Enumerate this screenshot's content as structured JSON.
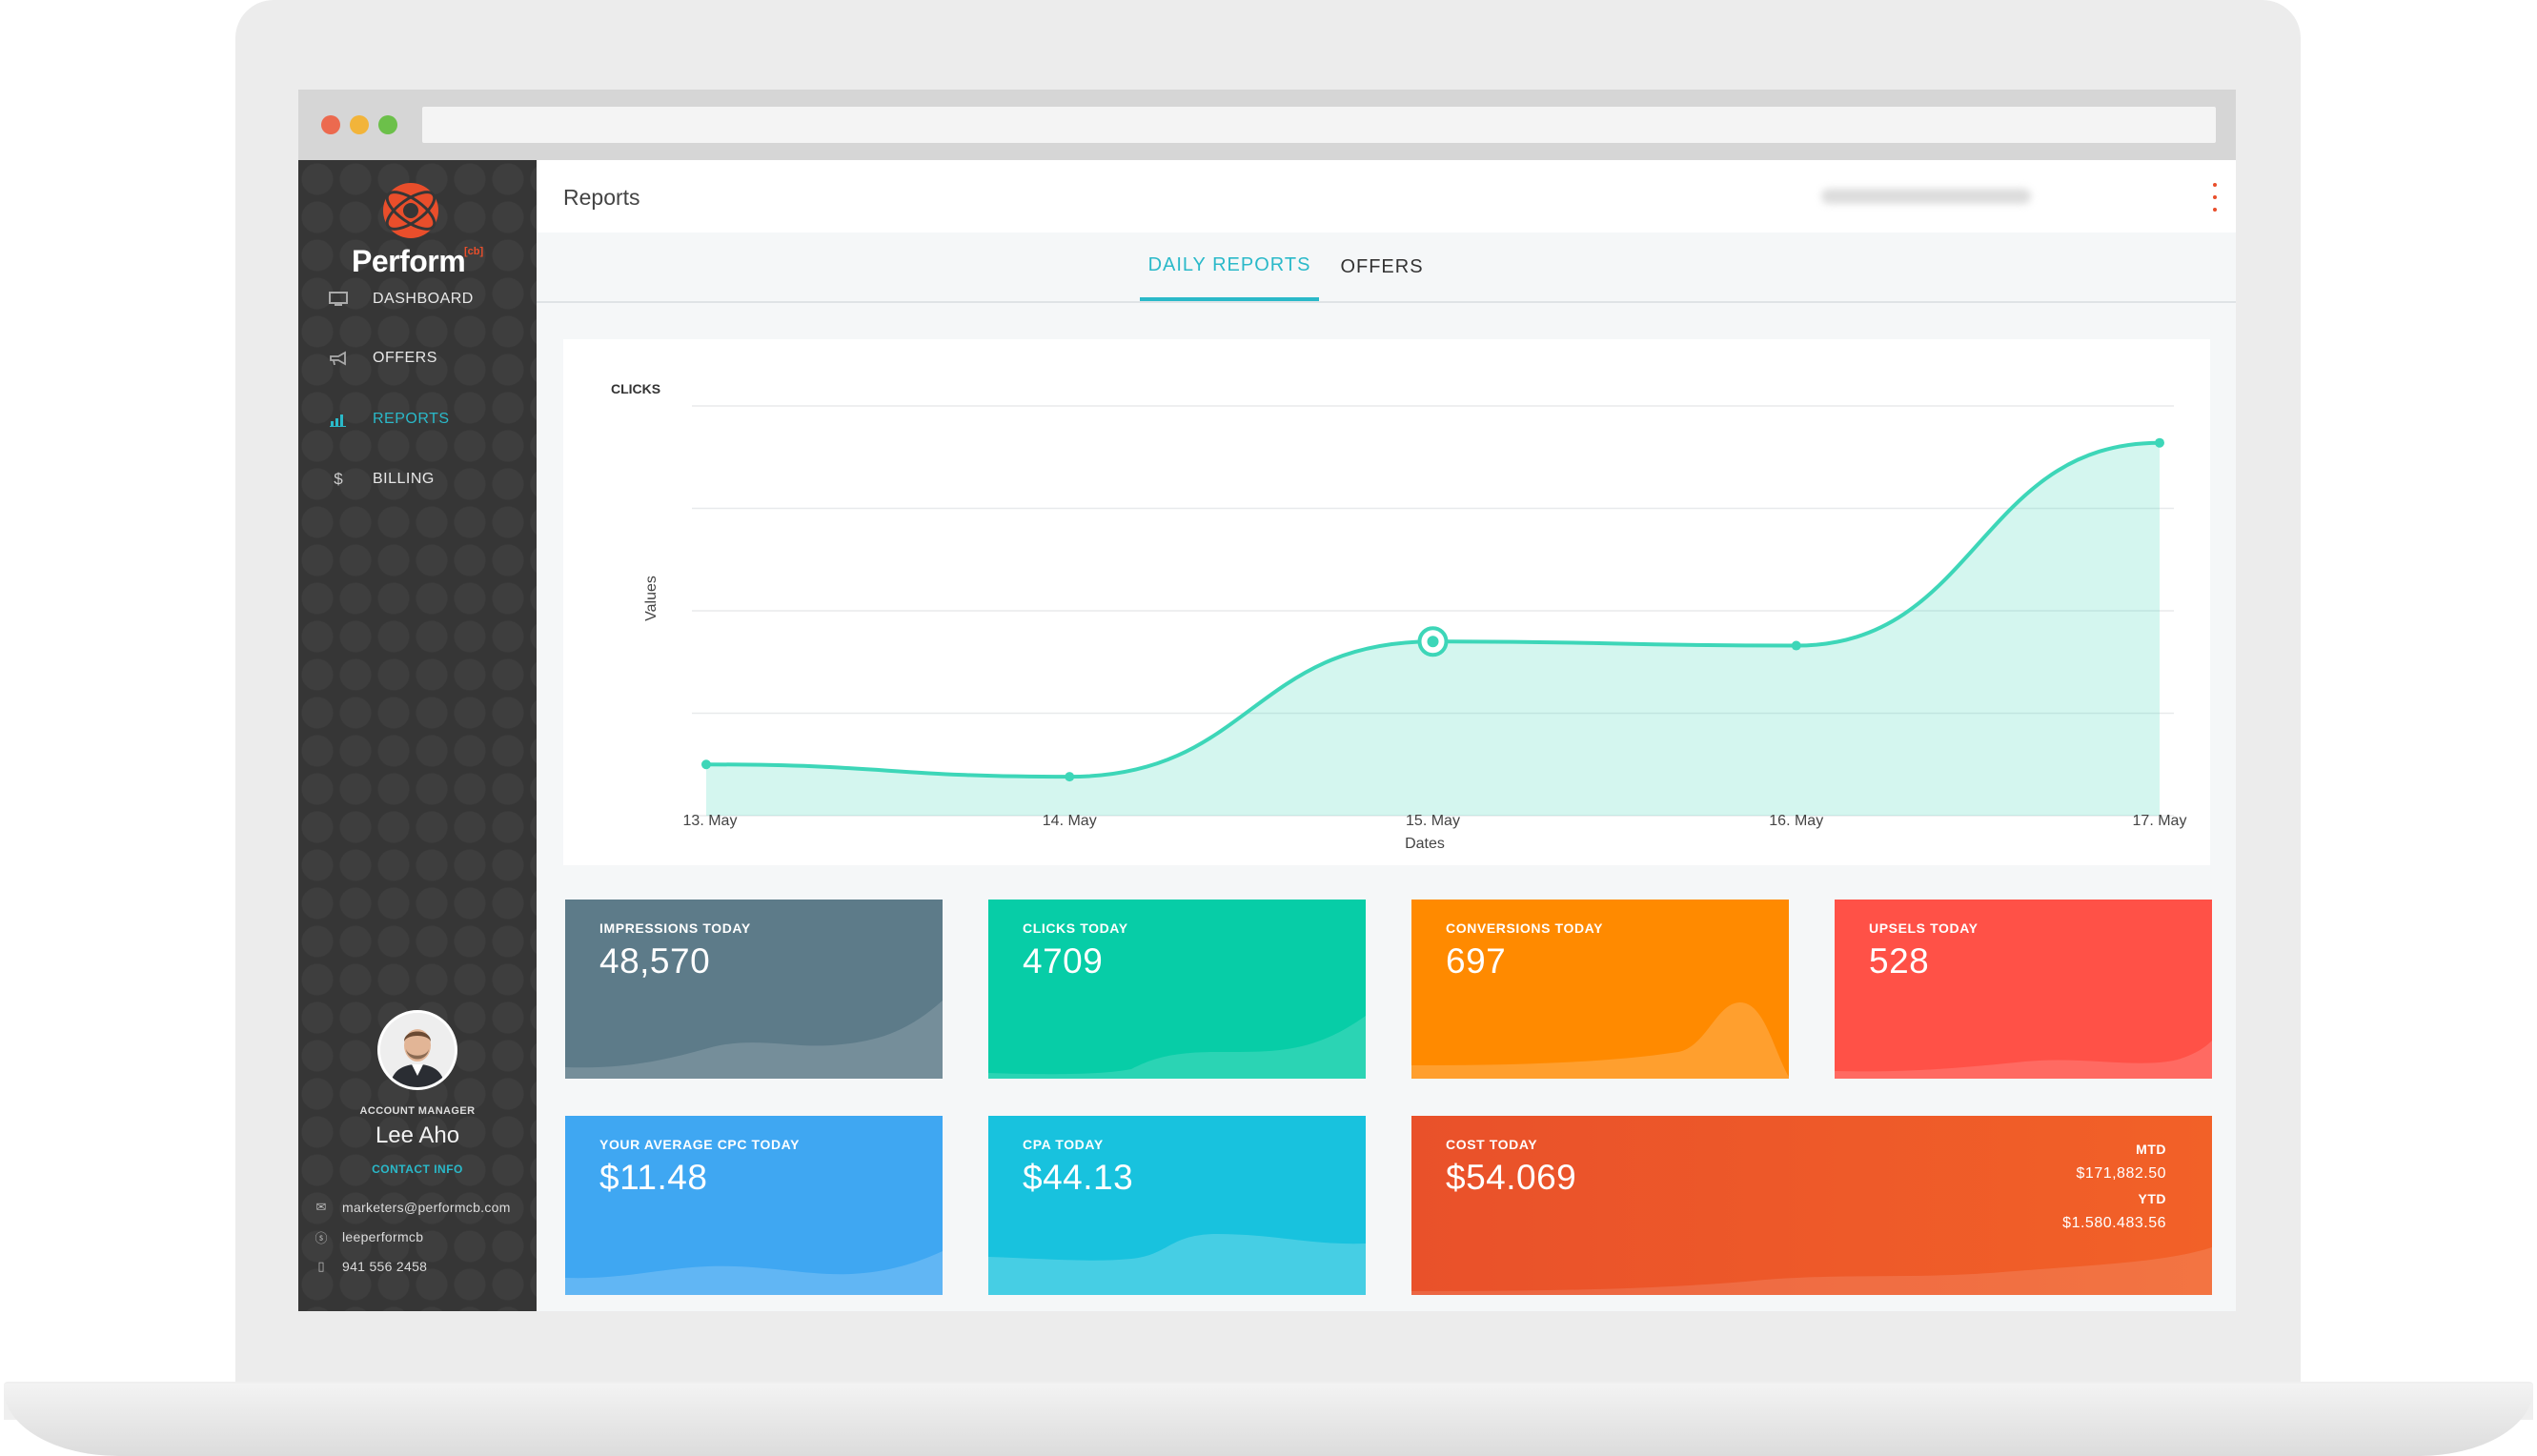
{
  "app": {
    "logo_text": "Perform",
    "logo_sup": "[cb]"
  },
  "colors": {
    "accent": "#2ab9c9",
    "sidebar": "#363636",
    "impressions": "#5d7b89",
    "clicks": "#07cda7",
    "conversions": "#ff8a00",
    "upsels": "#ff5147",
    "cpc": "#3fa7f2",
    "cpa": "#18c2de",
    "cost": "#ee5d25"
  },
  "sidebar": {
    "items": [
      {
        "label": "DASHBOARD",
        "icon": "monitor-icon"
      },
      {
        "label": "OFFERS",
        "icon": "megaphone-icon"
      },
      {
        "label": "REPORTS",
        "icon": "bar-chart-icon",
        "active": true
      },
      {
        "label": "BILLING",
        "icon": "dollar-icon"
      }
    ],
    "account_label": "ACCOUNT MANAGER",
    "account_name": "Lee Aho",
    "contact_title": "CONTACT INFO",
    "contacts": [
      {
        "icon": "mail-icon",
        "text": "marketers@performcb.com"
      },
      {
        "icon": "skype-icon",
        "text": "leeperformcb"
      },
      {
        "icon": "phone-icon",
        "text": "941 556 2458"
      }
    ]
  },
  "header": {
    "title": "Reports"
  },
  "tabs": [
    {
      "label": "DAILY REPORTS",
      "active": true
    },
    {
      "label": "OFFERS",
      "active": false
    }
  ],
  "chart_data": {
    "type": "area",
    "title": "CLICKS",
    "xlabel": "Dates",
    "ylabel": "Values",
    "categories": [
      "13. May",
      "14. May",
      "15. May",
      "16. May",
      "17. May"
    ],
    "series": [
      {
        "values": [
          500,
          380,
          1700,
          1660,
          3640
        ]
      }
    ],
    "ylim": [
      0,
      4000
    ],
    "highlight_index": 2,
    "grid": true,
    "color": "#3dd6b8"
  },
  "stats": {
    "impressions": {
      "label": "IMPRESSIONS TODAY",
      "value": "48,570"
    },
    "clicks": {
      "label": "CLICKS TODAY",
      "value": "4709"
    },
    "conversions": {
      "label": "CONVERSIONS TODAY",
      "value": "697"
    },
    "upsels": {
      "label": "UPSELS TODAY",
      "value": "528"
    },
    "cpc": {
      "label": "YOUR AVERAGE CPC TODAY",
      "value": "$11.48"
    },
    "cpa": {
      "label": "CPA TODAY",
      "value": "$44.13"
    },
    "cost": {
      "label": "COST TODAY",
      "value": "$54.069",
      "mtd_label": "MTD",
      "mtd_value": "$171,882.50",
      "ytd_label": "YTD",
      "ytd_value": "$1.580.483.56"
    }
  }
}
